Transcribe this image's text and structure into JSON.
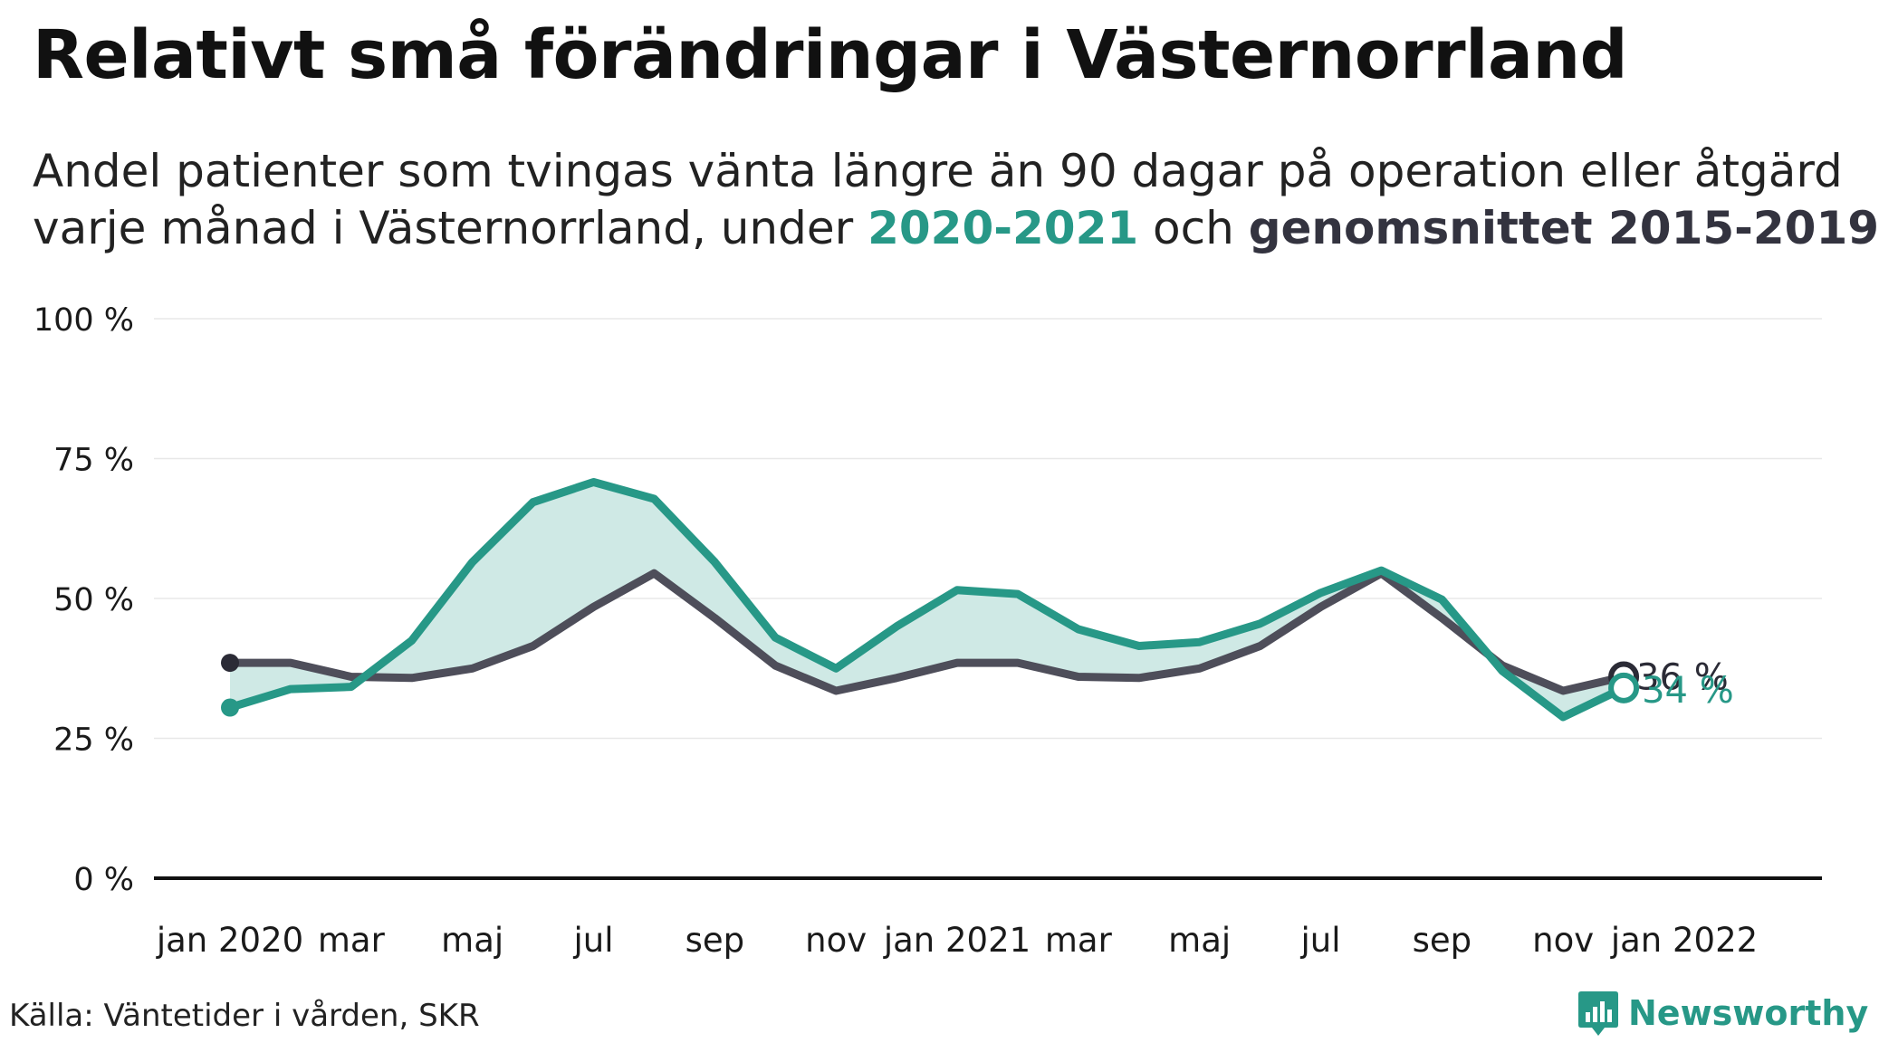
{
  "title": "Relativt små förändringar i Västernorrland",
  "subtitle": {
    "line1": "Andel patienter som tvingas vänta längre än 90 dagar på operation eller åtgärd",
    "line2_prefix": "varje månad i Västernorrland, under ",
    "series1_label": "2020-2021",
    "line2_mid": " och ",
    "series2_label": "genomsnittet 2015-2019"
  },
  "source": "Källa: Väntetider i vården, SKR",
  "brand": {
    "name": "Newsworthy",
    "icon": "newsworthy-logo-icon"
  },
  "colors": {
    "recent": "#279887",
    "average": "#4e4e5a",
    "fill": "#cfe9e5",
    "grid": "#e8e8e8",
    "axis": "#111111"
  },
  "chart_data": {
    "type": "line",
    "ylim": [
      0,
      100
    ],
    "yticks": [
      0,
      25,
      50,
      75,
      100
    ],
    "ytick_labels": [
      "0 %",
      "25 %",
      "50 %",
      "75 %",
      "100 %"
    ],
    "xlim": [
      0,
      24
    ],
    "xticks": [
      {
        "x": 0,
        "label": "jan 2020"
      },
      {
        "x": 2,
        "label": "mar"
      },
      {
        "x": 4,
        "label": "maj"
      },
      {
        "x": 6,
        "label": "jul"
      },
      {
        "x": 8,
        "label": "sep"
      },
      {
        "x": 10,
        "label": "nov"
      },
      {
        "x": 12,
        "label": "jan 2021"
      },
      {
        "x": 14,
        "label": "mar"
      },
      {
        "x": 16,
        "label": "maj"
      },
      {
        "x": 18,
        "label": "jul"
      },
      {
        "x": 20,
        "label": "sep"
      },
      {
        "x": 22,
        "label": "nov"
      },
      {
        "x": 24,
        "label": "jan 2022"
      }
    ],
    "series": [
      {
        "key": "average",
        "values": [
          38.5,
          38.5,
          36,
          35.8,
          37.5,
          41.5,
          48.5,
          54.5,
          46.5,
          38,
          33.5,
          35.8,
          38.5,
          38.5,
          36,
          35.8,
          37.5,
          41.5,
          48.5,
          54.5,
          46.5,
          38,
          33.5,
          36
        ],
        "end_label": "36 %"
      },
      {
        "key": "recent",
        "values": [
          30.5,
          33.8,
          34.2,
          42.5,
          56.5,
          67.2,
          70.8,
          67.8,
          56.5,
          43,
          37.5,
          45,
          51.5,
          50.8,
          44.5,
          41.5,
          42.2,
          45.5,
          51,
          55,
          49.8,
          37,
          28.8,
          34
        ],
        "end_label": "34 %"
      }
    ]
  }
}
